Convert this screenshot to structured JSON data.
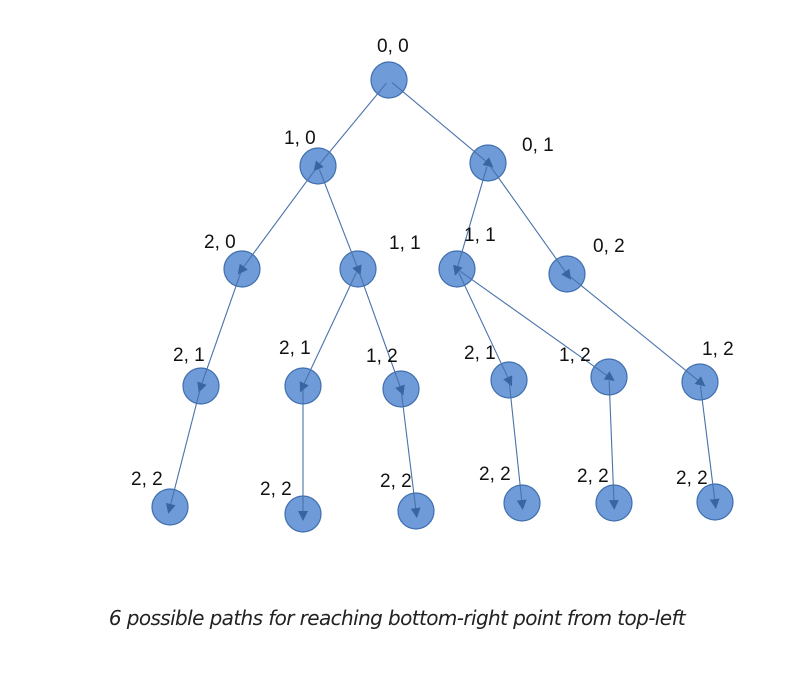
{
  "diagram": {
    "caption": "6 possible paths for reaching bottom-right point from top-left",
    "nodes": [
      {
        "id": "n0",
        "label": "0, 0"
      },
      {
        "id": "n1",
        "label": "1, 0"
      },
      {
        "id": "n2",
        "label": "0, 1"
      },
      {
        "id": "n3",
        "label": "2, 0"
      },
      {
        "id": "n4",
        "label": "1, 1"
      },
      {
        "id": "n5",
        "label": "1, 1"
      },
      {
        "id": "n6",
        "label": "0, 2"
      },
      {
        "id": "n7",
        "label": "2, 1"
      },
      {
        "id": "n8",
        "label": "2, 1"
      },
      {
        "id": "n9",
        "label": "1, 2"
      },
      {
        "id": "n10",
        "label": "2, 1"
      },
      {
        "id": "n11",
        "label": "1, 2"
      },
      {
        "id": "n12",
        "label": "1, 2"
      },
      {
        "id": "n13",
        "label": "2, 2"
      },
      {
        "id": "n14",
        "label": "2, 2"
      },
      {
        "id": "n15",
        "label": "2, 2"
      },
      {
        "id": "n16",
        "label": "2, 2"
      },
      {
        "id": "n17",
        "label": "2, 2"
      },
      {
        "id": "n18",
        "label": "2, 2"
      }
    ],
    "edges": [
      {
        "from": "n0",
        "to": "n1"
      },
      {
        "from": "n0",
        "to": "n2"
      },
      {
        "from": "n1",
        "to": "n3"
      },
      {
        "from": "n1",
        "to": "n4"
      },
      {
        "from": "n2",
        "to": "n5"
      },
      {
        "from": "n2",
        "to": "n6"
      },
      {
        "from": "n3",
        "to": "n7"
      },
      {
        "from": "n4",
        "to": "n8"
      },
      {
        "from": "n4",
        "to": "n9"
      },
      {
        "from": "n5",
        "to": "n10"
      },
      {
        "from": "n5",
        "to": "n11"
      },
      {
        "from": "n6",
        "to": "n12"
      },
      {
        "from": "n7",
        "to": "n13"
      },
      {
        "from": "n8",
        "to": "n14"
      },
      {
        "from": "n9",
        "to": "n15"
      },
      {
        "from": "n10",
        "to": "n16"
      },
      {
        "from": "n11",
        "to": "n17"
      },
      {
        "from": "n12",
        "to": "n18"
      }
    ]
  }
}
